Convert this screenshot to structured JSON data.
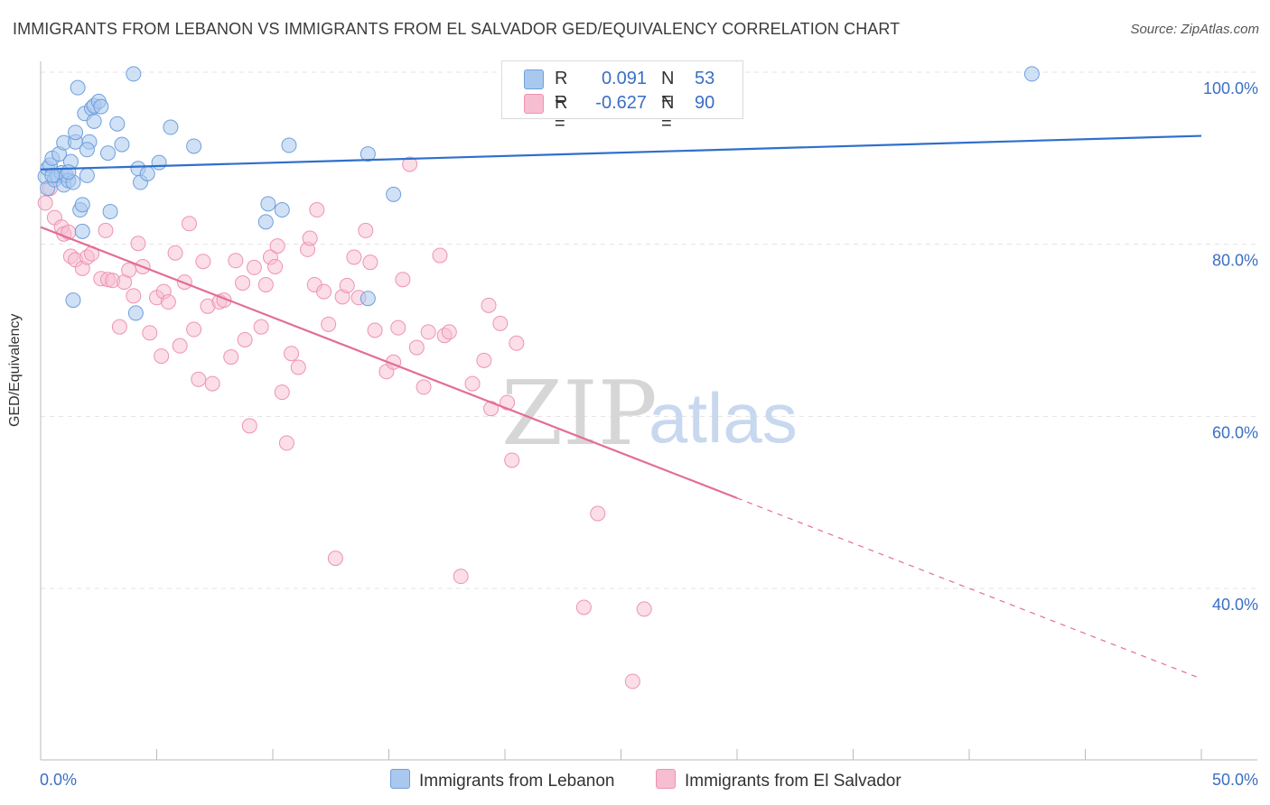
{
  "title": "IMMIGRANTS FROM LEBANON VS IMMIGRANTS FROM EL SALVADOR GED/EQUIVALENCY CORRELATION CHART",
  "source": "Source: ZipAtlas.com",
  "watermark": {
    "zip": "ZIP",
    "atlas": "atlas"
  },
  "legend": {
    "r_label": "R =",
    "n_label": "N =",
    "lebanon": {
      "r": "0.091",
      "n": "53"
    },
    "elsalvador": {
      "r": "-0.627",
      "n": "90"
    }
  },
  "colors": {
    "lebanon_fill": "#a9c8ee",
    "lebanon_stroke": "#6f9fdc",
    "lebanon_line": "#2f6fcc",
    "elsalvador_fill": "#f7bdd0",
    "elsalvador_stroke": "#ee93b3",
    "elsalvador_line": "#e36d99",
    "axis_text": "#3a6fc4"
  },
  "chart_data": {
    "type": "scatter",
    "title": "IMMIGRANTS FROM LEBANON VS IMMIGRANTS FROM EL SALVADOR GED/EQUIVALENCY CORRELATION CHART",
    "xlabel": "",
    "ylabel": "GED/Equivalency",
    "x_range": [
      0,
      50
    ],
    "y_range": [
      20,
      102
    ],
    "x_tick_labels": [
      "0.0%",
      "50.0%"
    ],
    "y_ticks": [
      40,
      60,
      80,
      100
    ],
    "y_tick_labels": [
      "40.0%",
      "60.0%",
      "80.0%",
      "100.0%"
    ],
    "grid": "horizontal dashed",
    "legend_position": "top-center",
    "series": [
      {
        "name": "Immigrants from Lebanon",
        "r": 0.091,
        "n": 53,
        "trend": {
          "x": [
            0,
            50
          ],
          "y": [
            88.7,
            92.6
          ]
        },
        "points": [
          [
            0.2,
            87.9
          ],
          [
            0.3,
            86.5
          ],
          [
            0.3,
            88.8
          ],
          [
            0.4,
            89.2
          ],
          [
            0.5,
            90.0
          ],
          [
            0.6,
            87.5
          ],
          [
            0.7,
            88.0
          ],
          [
            0.8,
            90.5
          ],
          [
            0.9,
            88.3
          ],
          [
            1.0,
            91.8
          ],
          [
            1.0,
            86.9
          ],
          [
            1.1,
            88.0
          ],
          [
            1.2,
            87.4
          ],
          [
            1.3,
            89.6
          ],
          [
            1.4,
            87.2
          ],
          [
            1.4,
            73.5
          ],
          [
            1.5,
            91.9
          ],
          [
            1.5,
            93.0
          ],
          [
            1.6,
            98.2
          ],
          [
            1.7,
            84.0
          ],
          [
            1.8,
            81.5
          ],
          [
            1.8,
            84.6
          ],
          [
            1.9,
            95.2
          ],
          [
            2.0,
            88.0
          ],
          [
            2.1,
            91.9
          ],
          [
            2.2,
            95.8
          ],
          [
            2.3,
            94.3
          ],
          [
            2.3,
            96.1
          ],
          [
            2.5,
            96.6
          ],
          [
            2.6,
            96.0
          ],
          [
            2.9,
            90.6
          ],
          [
            3.0,
            83.8
          ],
          [
            3.3,
            94.0
          ],
          [
            3.5,
            91.6
          ],
          [
            4.0,
            99.8
          ],
          [
            4.1,
            72.0
          ],
          [
            4.2,
            88.8
          ],
          [
            4.3,
            87.2
          ],
          [
            4.6,
            88.2
          ],
          [
            5.1,
            89.5
          ],
          [
            5.6,
            93.6
          ],
          [
            6.6,
            91.4
          ],
          [
            9.7,
            82.6
          ],
          [
            9.8,
            84.7
          ],
          [
            10.4,
            84.0
          ],
          [
            10.7,
            91.5
          ],
          [
            14.1,
            73.7
          ],
          [
            14.1,
            90.5
          ],
          [
            15.2,
            85.8
          ],
          [
            42.7,
            99.8
          ],
          [
            0.5,
            88.0
          ],
          [
            1.2,
            88.4
          ],
          [
            2.0,
            91.0
          ]
        ]
      },
      {
        "name": "Immigrants from El Salvador",
        "r": -0.627,
        "n": 90,
        "trend": {
          "x": [
            0,
            30
          ],
          "y": [
            82.0,
            50.5
          ]
        },
        "trend_dashed": {
          "x": [
            30,
            50
          ],
          "y": [
            50.5,
            29.5
          ]
        },
        "points": [
          [
            0.2,
            84.8
          ],
          [
            0.4,
            86.5
          ],
          [
            0.6,
            83.1
          ],
          [
            0.9,
            82.0
          ],
          [
            1.0,
            81.2
          ],
          [
            1.2,
            81.4
          ],
          [
            1.3,
            78.6
          ],
          [
            1.5,
            78.2
          ],
          [
            1.8,
            77.2
          ],
          [
            2.0,
            78.5
          ],
          [
            2.2,
            78.9
          ],
          [
            2.6,
            76.0
          ],
          [
            2.8,
            81.6
          ],
          [
            2.9,
            75.9
          ],
          [
            3.1,
            75.8
          ],
          [
            3.4,
            70.4
          ],
          [
            3.6,
            75.6
          ],
          [
            3.8,
            77.0
          ],
          [
            4.0,
            74.0
          ],
          [
            4.2,
            80.1
          ],
          [
            4.4,
            77.4
          ],
          [
            4.7,
            69.7
          ],
          [
            5.0,
            73.8
          ],
          [
            5.2,
            67.0
          ],
          [
            5.3,
            74.5
          ],
          [
            5.5,
            73.3
          ],
          [
            5.8,
            79.0
          ],
          [
            6.0,
            68.2
          ],
          [
            6.2,
            75.6
          ],
          [
            6.4,
            82.4
          ],
          [
            6.6,
            70.1
          ],
          [
            6.8,
            64.3
          ],
          [
            7.0,
            78.0
          ],
          [
            7.2,
            72.8
          ],
          [
            7.4,
            63.8
          ],
          [
            7.7,
            73.3
          ],
          [
            7.9,
            73.5
          ],
          [
            8.2,
            66.9
          ],
          [
            8.4,
            78.1
          ],
          [
            8.7,
            75.5
          ],
          [
            8.8,
            68.9
          ],
          [
            9.0,
            58.9
          ],
          [
            9.2,
            77.3
          ],
          [
            9.5,
            70.4
          ],
          [
            9.7,
            75.3
          ],
          [
            9.9,
            78.5
          ],
          [
            10.1,
            77.4
          ],
          [
            10.2,
            79.8
          ],
          [
            10.4,
            62.8
          ],
          [
            10.6,
            56.9
          ],
          [
            10.8,
            67.3
          ],
          [
            11.1,
            65.7
          ],
          [
            11.5,
            79.4
          ],
          [
            11.6,
            80.7
          ],
          [
            11.8,
            75.3
          ],
          [
            11.9,
            84.0
          ],
          [
            12.2,
            74.5
          ],
          [
            12.4,
            70.7
          ],
          [
            12.7,
            43.5
          ],
          [
            13.0,
            73.9
          ],
          [
            13.2,
            75.2
          ],
          [
            13.5,
            78.5
          ],
          [
            13.7,
            73.8
          ],
          [
            14.0,
            81.6
          ],
          [
            14.2,
            77.9
          ],
          [
            14.4,
            70.0
          ],
          [
            14.9,
            65.2
          ],
          [
            15.2,
            66.3
          ],
          [
            15.4,
            70.3
          ],
          [
            15.6,
            75.9
          ],
          [
            15.9,
            89.3
          ],
          [
            16.2,
            68.0
          ],
          [
            16.5,
            63.4
          ],
          [
            16.7,
            69.8
          ],
          [
            17.2,
            78.7
          ],
          [
            17.4,
            69.4
          ],
          [
            17.6,
            69.8
          ],
          [
            18.1,
            41.4
          ],
          [
            18.6,
            63.8
          ],
          [
            19.1,
            66.5
          ],
          [
            19.3,
            72.9
          ],
          [
            19.4,
            60.9
          ],
          [
            19.8,
            70.8
          ],
          [
            20.1,
            61.6
          ],
          [
            20.3,
            54.9
          ],
          [
            20.5,
            68.5
          ],
          [
            24.0,
            48.7
          ],
          [
            23.4,
            37.8
          ],
          [
            26.0,
            37.6
          ],
          [
            25.5,
            29.2
          ]
        ]
      }
    ]
  }
}
